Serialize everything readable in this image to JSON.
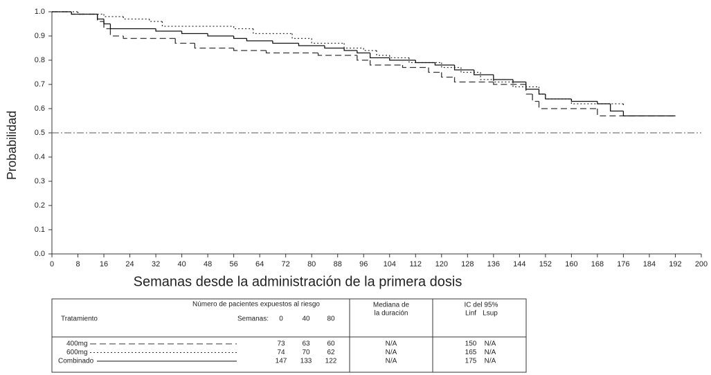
{
  "chart_data": {
    "type": "step",
    "ylabel": "Probabilidad",
    "xlabel": "Semanas desde la administración de la primera dosis",
    "xlim": [
      0,
      200
    ],
    "xticks": [
      0,
      8,
      16,
      24,
      32,
      40,
      48,
      56,
      64,
      72,
      80,
      88,
      96,
      104,
      112,
      120,
      128,
      136,
      144,
      152,
      160,
      168,
      176,
      184,
      192,
      200
    ],
    "ylim": [
      0,
      1
    ],
    "yticks": [
      {
        "value": 0,
        "label": "0.0"
      },
      0.1,
      0.2,
      0.3,
      0.4,
      0.5,
      0.6,
      0.7,
      0.8,
      0.9,
      {
        "value": 1,
        "label": "1.0"
      }
    ],
    "reference_line": 0.5,
    "series": [
      {
        "name": "400mg",
        "color": "#333333",
        "dash": "dashed",
        "x": [
          0,
          6,
          14,
          16,
          18,
          22,
          38,
          44,
          56,
          66,
          82,
          94,
          98,
          108,
          116,
          120,
          124,
          136,
          146,
          148,
          150,
          168,
          192
        ],
        "values": [
          1.0,
          0.99,
          0.96,
          0.93,
          0.9,
          0.89,
          0.87,
          0.85,
          0.84,
          0.83,
          0.82,
          0.8,
          0.78,
          0.77,
          0.75,
          0.73,
          0.71,
          0.7,
          0.66,
          0.63,
          0.6,
          0.57,
          0.57
        ]
      },
      {
        "name": "600mg",
        "color": "#333333",
        "dash": "dotted",
        "x": [
          0,
          8,
          14,
          16,
          22,
          30,
          34,
          56,
          62,
          74,
          80,
          90,
          96,
          100,
          104,
          110,
          120,
          126,
          132,
          136,
          142,
          150,
          152,
          160,
          176
        ],
        "values": [
          1.0,
          0.99,
          0.99,
          0.98,
          0.97,
          0.96,
          0.94,
          0.93,
          0.91,
          0.89,
          0.87,
          0.85,
          0.84,
          0.82,
          0.81,
          0.79,
          0.77,
          0.75,
          0.72,
          0.71,
          0.69,
          0.66,
          0.64,
          0.62,
          0.61
        ]
      },
      {
        "name": "Combinado",
        "color": "#111111",
        "dash": "solid",
        "x": [
          0,
          6,
          14,
          16,
          18,
          32,
          40,
          48,
          56,
          60,
          68,
          76,
          84,
          90,
          94,
          98,
          104,
          112,
          118,
          124,
          130,
          136,
          142,
          146,
          150,
          152,
          160,
          168,
          172,
          176,
          192
        ],
        "values": [
          1.0,
          0.99,
          0.97,
          0.95,
          0.93,
          0.92,
          0.91,
          0.9,
          0.89,
          0.88,
          0.87,
          0.86,
          0.85,
          0.84,
          0.83,
          0.81,
          0.8,
          0.79,
          0.78,
          0.76,
          0.74,
          0.72,
          0.71,
          0.68,
          0.66,
          0.64,
          0.63,
          0.62,
          0.59,
          0.57,
          0.57
        ]
      }
    ]
  },
  "table": {
    "header_treatment": "Tratamiento",
    "header_at_risk": "Número de pacientes expuestos al riesgo",
    "header_weeks": "Semanas:",
    "weeks": [
      0,
      40,
      80
    ],
    "header_median": [
      "Mediana de",
      "la duración"
    ],
    "header_ci": "IC del 95%",
    "header_ci_low": "Linf",
    "header_ci_high": "Lsup",
    "rows": [
      {
        "at_risk": [
          73,
          63,
          60
        ],
        "median": "N/A",
        "ci_low": 150,
        "ci_high": "N/A"
      },
      {
        "at_risk": [
          74,
          70,
          62
        ],
        "median": "N/A",
        "ci_low": 165,
        "ci_high": "N/A"
      },
      {
        "at_risk": [
          147,
          133,
          122
        ],
        "median": "N/A",
        "ci_low": 175,
        "ci_high": "N/A"
      }
    ]
  }
}
